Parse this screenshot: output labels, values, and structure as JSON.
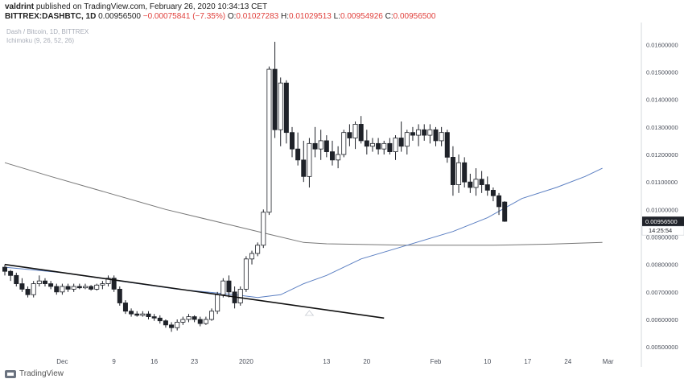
{
  "header": {
    "author": "valdrint",
    "published_text": "published on TradingView.com, February 26, 2020 10:34:13 CET",
    "symbol": "BITTREX:DASHBTC, 1D",
    "last_value": "0.00956500",
    "change": "−0.00075841 (−7.35%)",
    "o_label": "O:",
    "o_value": "0.01027283",
    "h_label": "H:",
    "h_value": "0.01029513",
    "l_label": "L:",
    "l_value": "0.00954926",
    "c_label": "C:",
    "c_value": "0.00956500"
  },
  "chart_labels": {
    "pair": "Dash / Bitcoin, 1D, BITTREX",
    "indicator": "Ichimoku (9, 26, 52, 26)"
  },
  "footer": {
    "brand": "TradingView"
  },
  "colors": {
    "up": "#ffffff",
    "down": "#1f2229",
    "candle_border": "#1f2229",
    "ma_blue": "#5b7fc2",
    "ma_gray": "#777777",
    "trendline": "#111111",
    "price_tag_bg": "#1f2229",
    "neg": "#e0403c"
  },
  "chart_data": {
    "type": "candlestick",
    "y_axis_ticks": [
      "0.01600000",
      "0.01500000",
      "0.01400000",
      "0.01300000",
      "0.01200000",
      "0.01100000",
      "0.01000000",
      "0.00900000",
      "0.00800000",
      "0.00700000",
      "0.00600000",
      "0.00500000"
    ],
    "ylim": [
      0.0048,
      0.0168
    ],
    "x_ticks": [
      {
        "label": "Dec",
        "bar": 10
      },
      {
        "label": "9",
        "bar": 19
      },
      {
        "label": "16",
        "bar": 26
      },
      {
        "label": "23",
        "bar": 33
      },
      {
        "label": "2020",
        "bar": 42
      },
      {
        "label": "13",
        "bar": 56
      },
      {
        "label": "20",
        "bar": 63
      },
      {
        "label": "Feb",
        "bar": 75
      },
      {
        "label": "10",
        "bar": 84
      },
      {
        "label": "17",
        "bar": 91
      },
      {
        "label": "24",
        "bar": 98
      },
      {
        "label": "Mar",
        "bar": 105
      }
    ],
    "n_bars": 118,
    "price_label": "0.00956500",
    "countdown_label": "14:25:54",
    "candles": [
      [
        0.0079,
        0.008,
        0.0076,
        0.00775
      ],
      [
        0.00775,
        0.0078,
        0.0074,
        0.0076
      ],
      [
        0.0076,
        0.0077,
        0.0072,
        0.0073
      ],
      [
        0.0073,
        0.0075,
        0.007,
        0.0071
      ],
      [
        0.0071,
        0.0072,
        0.0068,
        0.0069
      ],
      [
        0.0069,
        0.0074,
        0.0068,
        0.0073
      ],
      [
        0.0073,
        0.0076,
        0.0072,
        0.0074
      ],
      [
        0.0074,
        0.0075,
        0.0072,
        0.0073
      ],
      [
        0.0073,
        0.0074,
        0.0071,
        0.0072
      ],
      [
        0.0072,
        0.0073,
        0.0069,
        0.007
      ],
      [
        0.007,
        0.0073,
        0.0069,
        0.0072
      ],
      [
        0.0072,
        0.0073,
        0.007,
        0.0071
      ],
      [
        0.0071,
        0.0073,
        0.007,
        0.0072
      ],
      [
        0.0072,
        0.0073,
        0.0071,
        0.00715
      ],
      [
        0.00715,
        0.0073,
        0.0071,
        0.0072
      ],
      [
        0.0072,
        0.00725,
        0.00705,
        0.0071
      ],
      [
        0.0071,
        0.0073,
        0.00705,
        0.00725
      ],
      [
        0.00725,
        0.0074,
        0.0071,
        0.0073
      ],
      [
        0.0073,
        0.0076,
        0.0072,
        0.0075
      ],
      [
        0.0075,
        0.0076,
        0.007,
        0.0071
      ],
      [
        0.0071,
        0.0072,
        0.0065,
        0.0066
      ],
      [
        0.0066,
        0.0067,
        0.0062,
        0.0063
      ],
      [
        0.0063,
        0.0064,
        0.0061,
        0.0062
      ],
      [
        0.0062,
        0.0063,
        0.0061,
        0.00615
      ],
      [
        0.00615,
        0.0063,
        0.0061,
        0.0062
      ],
      [
        0.0062,
        0.0063,
        0.006,
        0.0061
      ],
      [
        0.0061,
        0.0062,
        0.00595,
        0.00605
      ],
      [
        0.00605,
        0.00615,
        0.00585,
        0.00595
      ],
      [
        0.00595,
        0.006,
        0.0057,
        0.0058
      ],
      [
        0.0058,
        0.0059,
        0.00555,
        0.0057
      ],
      [
        0.0057,
        0.006,
        0.0056,
        0.0059
      ],
      [
        0.0059,
        0.0061,
        0.0058,
        0.006
      ],
      [
        0.006,
        0.0062,
        0.0059,
        0.0061
      ],
      [
        0.0061,
        0.00615,
        0.0059,
        0.006
      ],
      [
        0.006,
        0.0061,
        0.00575,
        0.00585
      ],
      [
        0.00585,
        0.0061,
        0.0058,
        0.006
      ],
      [
        0.006,
        0.0064,
        0.00595,
        0.0063
      ],
      [
        0.0063,
        0.007,
        0.0062,
        0.0069
      ],
      [
        0.0069,
        0.0075,
        0.0068,
        0.0074
      ],
      [
        0.0074,
        0.0076,
        0.0068,
        0.007
      ],
      [
        0.007,
        0.0072,
        0.0064,
        0.0066
      ],
      [
        0.0066,
        0.0072,
        0.0065,
        0.0071
      ],
      [
        0.0071,
        0.0083,
        0.007,
        0.0082
      ],
      [
        0.0082,
        0.0085,
        0.008,
        0.0084
      ],
      [
        0.0084,
        0.0088,
        0.0083,
        0.0087
      ],
      [
        0.0087,
        0.01,
        0.0086,
        0.0099
      ],
      [
        0.0099,
        0.0152,
        0.0098,
        0.0151
      ],
      [
        0.0151,
        0.0161,
        0.0126,
        0.0129
      ],
      [
        0.0129,
        0.0148,
        0.0123,
        0.0146
      ],
      [
        0.0146,
        0.0147,
        0.0124,
        0.0128
      ],
      [
        0.0128,
        0.013,
        0.0119,
        0.0122
      ],
      [
        0.0122,
        0.0128,
        0.0116,
        0.0118
      ],
      [
        0.0118,
        0.0125,
        0.011,
        0.0112
      ],
      [
        0.0112,
        0.0126,
        0.0108,
        0.0124
      ],
      [
        0.0124,
        0.013,
        0.0119,
        0.0122
      ],
      [
        0.0122,
        0.0129,
        0.0118,
        0.0125
      ],
      [
        0.0125,
        0.0127,
        0.0119,
        0.0121
      ],
      [
        0.0121,
        0.0125,
        0.0116,
        0.0118
      ],
      [
        0.0118,
        0.0123,
        0.0115,
        0.012
      ],
      [
        0.012,
        0.0129,
        0.0119,
        0.0128
      ],
      [
        0.0128,
        0.0131,
        0.0123,
        0.0126
      ],
      [
        0.0126,
        0.0132,
        0.0122,
        0.0131
      ],
      [
        0.0131,
        0.0134,
        0.0124,
        0.0125
      ],
      [
        0.0125,
        0.0129,
        0.012,
        0.0123
      ],
      [
        0.0123,
        0.0126,
        0.0121,
        0.0124
      ],
      [
        0.0124,
        0.0126,
        0.012,
        0.0122
      ],
      [
        0.0122,
        0.0125,
        0.012,
        0.0124
      ],
      [
        0.0124,
        0.0126,
        0.012,
        0.0121
      ],
      [
        0.0121,
        0.0127,
        0.0118,
        0.0126
      ],
      [
        0.0126,
        0.0132,
        0.0121,
        0.0123
      ],
      [
        0.0123,
        0.0129,
        0.012,
        0.0128
      ],
      [
        0.0128,
        0.013,
        0.0125,
        0.0127
      ],
      [
        0.0127,
        0.0131,
        0.0123,
        0.0129
      ],
      [
        0.0129,
        0.0131,
        0.0125,
        0.0127
      ],
      [
        0.0127,
        0.0131,
        0.0124,
        0.0129
      ],
      [
        0.0129,
        0.013,
        0.0123,
        0.0125
      ],
      [
        0.0125,
        0.013,
        0.0123,
        0.0128
      ],
      [
        0.0128,
        0.0129,
        0.0117,
        0.0119
      ],
      [
        0.0119,
        0.0123,
        0.0105,
        0.0109
      ],
      [
        0.0109,
        0.012,
        0.0106,
        0.0117
      ],
      [
        0.0117,
        0.0119,
        0.0108,
        0.011
      ],
      [
        0.011,
        0.0113,
        0.0106,
        0.0108
      ],
      [
        0.0108,
        0.0115,
        0.0105,
        0.0111
      ],
      [
        0.0111,
        0.0114,
        0.0106,
        0.0109
      ],
      [
        0.0109,
        0.0112,
        0.0105,
        0.0107
      ],
      [
        0.0107,
        0.0108,
        0.0103,
        0.0105
      ],
      [
        0.0105,
        0.0106,
        0.0098,
        0.0101
      ],
      [
        0.01027,
        0.0103,
        0.00955,
        0.00957
      ]
    ],
    "ma_blue": [
      [
        0,
        0.0079
      ],
      [
        10,
        0.0077
      ],
      [
        20,
        0.0074
      ],
      [
        30,
        0.0071
      ],
      [
        40,
        0.0069
      ],
      [
        44,
        0.0068
      ],
      [
        48,
        0.0069
      ],
      [
        52,
        0.0073
      ],
      [
        56,
        0.0076
      ],
      [
        62,
        0.0082
      ],
      [
        70,
        0.0087
      ],
      [
        78,
        0.0092
      ],
      [
        84,
        0.0097
      ],
      [
        90,
        0.0104
      ],
      [
        96,
        0.0108
      ],
      [
        101,
        0.0112
      ],
      [
        104,
        0.0115
      ]
    ],
    "ma_gray": [
      [
        0,
        0.0117
      ],
      [
        8,
        0.0112
      ],
      [
        18,
        0.0106
      ],
      [
        28,
        0.01
      ],
      [
        38,
        0.0095
      ],
      [
        46,
        0.0091
      ],
      [
        52,
        0.0088
      ],
      [
        56,
        0.00875
      ],
      [
        70,
        0.0087
      ],
      [
        85,
        0.0087
      ],
      [
        95,
        0.00874
      ],
      [
        104,
        0.0088
      ]
    ],
    "trendline": [
      [
        0,
        0.008
      ],
      [
        66,
        0.00605
      ]
    ],
    "up_marker_bar": 53
  }
}
